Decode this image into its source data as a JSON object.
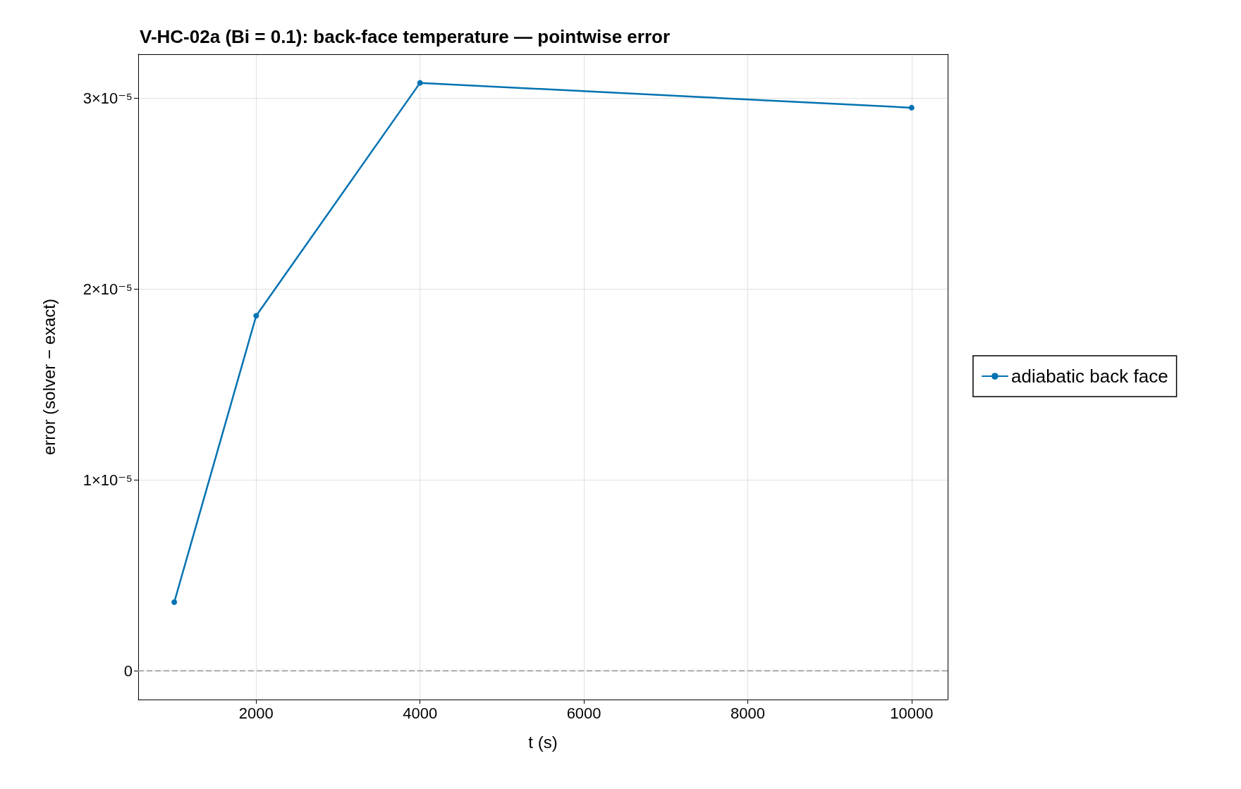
{
  "chart_data": {
    "type": "line",
    "title": "V-HC-02a (Bi = 0.1): back-face temperature — pointwise error",
    "xlabel": "t (s)",
    "ylabel": "error (solver − exact)",
    "x": [
      1000,
      2000,
      4000,
      10000
    ],
    "series": [
      {
        "name": "adiabatic back face",
        "color": "#0072b2",
        "values": [
          3.6e-06,
          1.86e-05,
          3.08e-05,
          2.95e-05
        ]
      }
    ],
    "xlim": [
      560,
      10440
    ],
    "xticks": [
      2000,
      4000,
      6000,
      8000,
      10000
    ],
    "ylim": [
      -1.5e-06,
      3.23e-05
    ],
    "yticks": [
      {
        "value": 0,
        "label": "0"
      },
      {
        "value": 1e-05,
        "label": "1×10⁻⁵"
      },
      {
        "value": 2e-05,
        "label": "2×10⁻⁵"
      },
      {
        "value": 3e-05,
        "label": "3×10⁻⁵"
      }
    ],
    "ref_lines": [
      {
        "axis": "y",
        "value": 0,
        "label": null,
        "color": "#aaaaaa",
        "line_style": "dashed"
      }
    ],
    "grid": true,
    "legend": "right",
    "marker": "circle",
    "line_style": "solid"
  }
}
